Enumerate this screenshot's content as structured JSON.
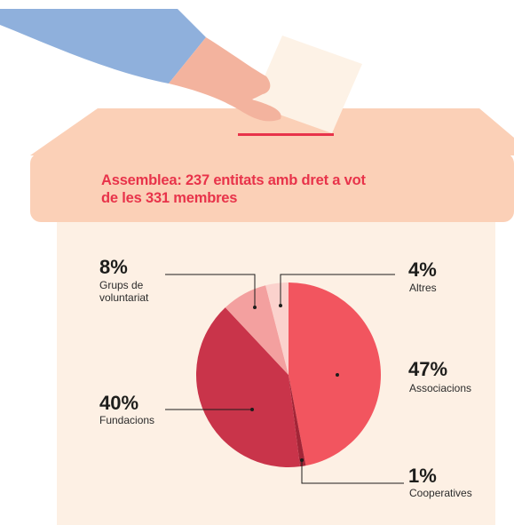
{
  "headline": {
    "line1": "Assemblea: 237 entitats amb dret a vot",
    "line2": "de les 331 membres"
  },
  "colors": {
    "accent": "#e8334a",
    "box": "#fbd0b7",
    "box_front": "#fdf0e4",
    "slot": "#e8334a",
    "sleeve": "#8fb0dc",
    "hand": "#f3b39e",
    "ballot": "#fdf2e6"
  },
  "chart_data": {
    "type": "pie",
    "title": "Assemblea: 237 entitats amb dret a vot de les 331 membres",
    "slices": [
      {
        "label": "Associacions",
        "value": 47,
        "display": "47%",
        "color": "#f2555f"
      },
      {
        "label": "Cooperatives",
        "value": 1,
        "display": "1%",
        "color": "#a32537"
      },
      {
        "label": "Fundacions",
        "value": 40,
        "display": "40%",
        "color": "#c9344a"
      },
      {
        "label": "Grups de voluntariat",
        "value": 8,
        "display": "8%",
        "color": "#f3a09f"
      },
      {
        "label": "Altres",
        "value": 4,
        "display": "4%",
        "color": "#fbd2cd"
      }
    ]
  },
  "labels": {
    "grups": {
      "pct": "8%",
      "name_line1": "Grups de",
      "name_line2": "voluntariat"
    },
    "altres": {
      "pct": "4%",
      "name": "Altres"
    },
    "associacions": {
      "pct": "47%",
      "name": "Associacions"
    },
    "fundacions": {
      "pct": "40%",
      "name": "Fundacions"
    },
    "cooperatives": {
      "pct": "1%",
      "name": "Cooperatives"
    }
  }
}
